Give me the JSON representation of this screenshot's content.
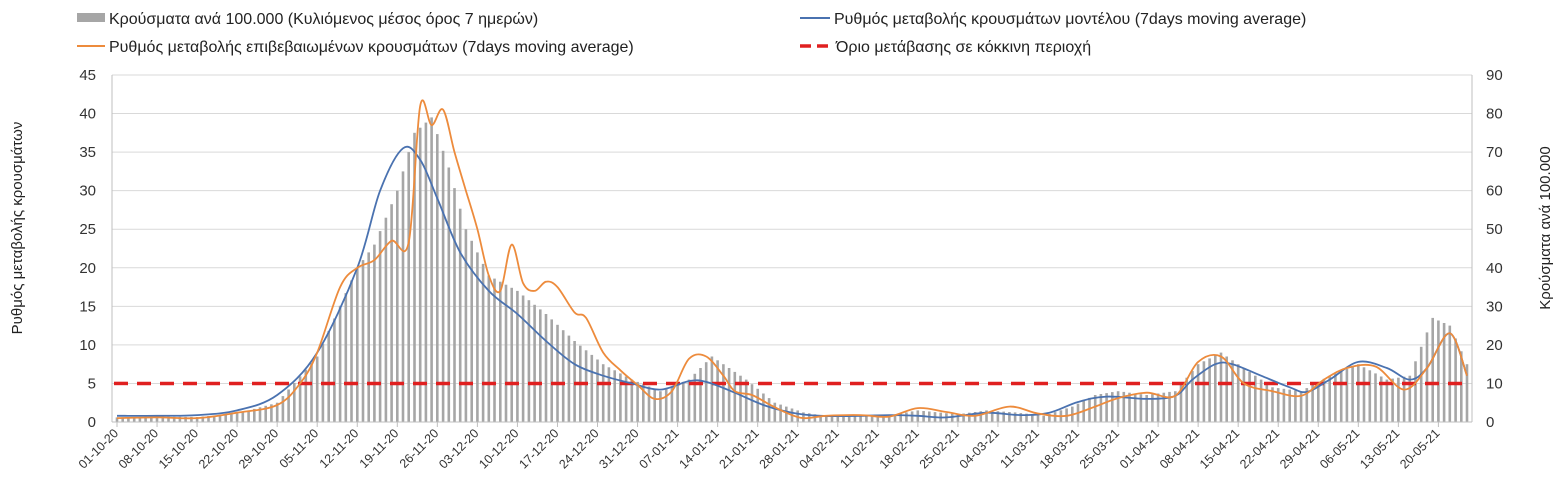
{
  "chart_data": {
    "type": "bar+line",
    "legend": [
      {
        "key": "bars",
        "label": "Κρούσματα ανά 100.000 (Κυλιόμενος μέσος όρος 7 ημερών)",
        "color": "#a6a6a6"
      },
      {
        "key": "model",
        "label": "Ρυθμός μεταβολής κρουσμάτων μοντέλου (7days moving average)",
        "color": "#4a72b0"
      },
      {
        "key": "confirmed",
        "label": "Ρυθμός μεταβολής επιβεβαιωμένων κρουσμάτων (7days moving average)",
        "color": "#ed8b3c"
      },
      {
        "key": "threshold",
        "label": "Όριο μετάβασης σε κόκκινη περιοχή",
        "color": "#e02020"
      }
    ],
    "ylabel_left": "Ρυθμός μεταβολής κρουσμάτων",
    "ylabel_right": "Κρούσματα ανά 100.000",
    "ylim_left": [
      0,
      45
    ],
    "ylim_right": [
      0,
      90
    ],
    "yticks_left": [
      "0",
      "5",
      "10",
      "15",
      "20",
      "25",
      "30",
      "35",
      "40",
      "45"
    ],
    "yticks_right": [
      "0",
      "10",
      "20",
      "30",
      "40",
      "50",
      "60",
      "70",
      "80",
      "90"
    ],
    "x_tick_labels": [
      "01-10-20",
      "08-10-20",
      "15-10-20",
      "22-10-20",
      "29-10-20",
      "05-11-20",
      "12-11-20",
      "19-11-20",
      "26-11-20",
      "03-12-20",
      "10-12-20",
      "17-12-20",
      "24-12-20",
      "31-12-20",
      "07-01-21",
      "14-01-21",
      "21-01-21",
      "28-01-21",
      "04-02-21",
      "11-02-21",
      "18-02-21",
      "25-02-21",
      "04-03-21",
      "11-03-21",
      "18-03-21",
      "25-03-21",
      "01-04-21",
      "08-04-21",
      "15-04-21",
      "22-04-21",
      "29-04-21",
      "06-05-21",
      "13-05-21",
      "20-05-21"
    ],
    "total_days": 236,
    "threshold": 5,
    "series": [
      {
        "key": "bars",
        "name": "Κρούσματα ανά 100.000 (Κυλιόμενος μέσος όρος 7 ημερών)",
        "axis": "right",
        "anchors": [
          [
            0,
            1.2
          ],
          [
            7,
            1.4
          ],
          [
            14,
            1.3
          ],
          [
            21,
            2.2
          ],
          [
            28,
            5
          ],
          [
            35,
            17
          ],
          [
            42,
            40
          ],
          [
            45,
            46
          ],
          [
            49,
            60
          ],
          [
            52,
            75
          ],
          [
            55,
            79
          ],
          [
            58,
            66
          ],
          [
            61,
            50
          ],
          [
            65,
            38
          ],
          [
            70,
            34
          ],
          [
            75,
            28
          ],
          [
            80,
            21
          ],
          [
            85,
            15
          ],
          [
            90,
            11
          ],
          [
            95,
            8
          ],
          [
            100,
            11
          ],
          [
            104,
            17
          ],
          [
            110,
            11
          ],
          [
            115,
            5
          ],
          [
            120,
            2.5
          ],
          [
            124,
            1.5
          ],
          [
            130,
            1.6
          ],
          [
            136,
            2
          ],
          [
            140,
            3
          ],
          [
            147,
            2
          ],
          [
            152,
            3
          ],
          [
            157,
            2.5
          ],
          [
            162,
            1.6
          ],
          [
            167,
            4
          ],
          [
            171,
            7
          ],
          [
            175,
            8
          ],
          [
            180,
            7
          ],
          [
            185,
            8
          ],
          [
            189,
            15
          ],
          [
            193,
            18
          ],
          [
            197,
            14
          ],
          [
            202,
            9
          ],
          [
            207,
            8
          ],
          [
            212,
            12
          ],
          [
            217,
            15
          ],
          [
            222,
            11
          ],
          [
            226,
            12
          ],
          [
            230,
            27
          ],
          [
            233,
            25
          ],
          [
            236,
            15
          ]
        ]
      },
      {
        "key": "model",
        "name": "Ρυθμός μεταβολής κρουσμάτων μοντέλου (7days moving average)",
        "axis": "left",
        "anchors": [
          [
            0,
            0.8
          ],
          [
            7,
            0.8
          ],
          [
            14,
            0.9
          ],
          [
            21,
            1.5
          ],
          [
            28,
            3.5
          ],
          [
            35,
            9
          ],
          [
            42,
            20
          ],
          [
            46,
            30
          ],
          [
            50,
            35.5
          ],
          [
            53,
            34
          ],
          [
            56,
            29
          ],
          [
            60,
            22
          ],
          [
            65,
            17
          ],
          [
            70,
            14
          ],
          [
            75,
            10.5
          ],
          [
            80,
            7.5
          ],
          [
            85,
            6
          ],
          [
            90,
            5
          ],
          [
            95,
            4.2
          ],
          [
            100,
            5.3
          ],
          [
            103,
            5.2
          ],
          [
            108,
            3.8
          ],
          [
            113,
            2.2
          ],
          [
            118,
            1.2
          ],
          [
            123,
            0.8
          ],
          [
            130,
            0.8
          ],
          [
            135,
            0.9
          ],
          [
            140,
            0.8
          ],
          [
            145,
            0.6
          ],
          [
            152,
            1.2
          ],
          [
            158,
            0.9
          ],
          [
            163,
            1.2
          ],
          [
            168,
            2.6
          ],
          [
            173,
            3.3
          ],
          [
            180,
            3
          ],
          [
            185,
            3.4
          ],
          [
            188,
            5.5
          ],
          [
            192,
            7.5
          ],
          [
            195,
            7.5
          ],
          [
            200,
            6
          ],
          [
            205,
            4.5
          ],
          [
            208,
            3.9
          ],
          [
            212,
            5.5
          ],
          [
            217,
            7.8
          ],
          [
            222,
            7
          ],
          [
            226,
            5.5
          ],
          [
            229,
            7
          ],
          [
            233,
            11.5
          ],
          [
            236,
            6
          ]
        ]
      },
      {
        "key": "confirmed",
        "name": "Ρυθμός μεταβολής επιβεβαιωμένων κρουσμάτων (7days moving average)",
        "axis": "left",
        "anchors": [
          [
            0,
            0.5
          ],
          [
            7,
            0.6
          ],
          [
            14,
            0.5
          ],
          [
            21,
            1.2
          ],
          [
            28,
            2.2
          ],
          [
            32,
            5
          ],
          [
            35,
            9
          ],
          [
            39,
            17.5
          ],
          [
            42,
            20
          ],
          [
            45,
            21
          ],
          [
            48,
            23.5
          ],
          [
            51,
            23.3
          ],
          [
            53,
            41
          ],
          [
            55,
            38.5
          ],
          [
            57,
            40.5
          ],
          [
            59,
            35
          ],
          [
            61,
            30
          ],
          [
            63,
            25
          ],
          [
            65,
            19
          ],
          [
            67,
            17
          ],
          [
            69,
            23
          ],
          [
            71,
            18
          ],
          [
            73,
            17
          ],
          [
            75,
            18.2
          ],
          [
            77,
            17.5
          ],
          [
            80,
            14.2
          ],
          [
            82,
            13.5
          ],
          [
            85,
            9
          ],
          [
            88,
            6.7
          ],
          [
            91,
            4.8
          ],
          [
            94,
            3
          ],
          [
            97,
            4
          ],
          [
            100,
            8.2
          ],
          [
            103,
            8.5
          ],
          [
            106,
            6
          ],
          [
            108,
            4
          ],
          [
            111,
            3.5
          ],
          [
            114,
            2.3
          ],
          [
            117,
            1.2
          ],
          [
            120,
            0.5
          ],
          [
            124,
            0.8
          ],
          [
            130,
            0.9
          ],
          [
            135,
            0.7
          ],
          [
            140,
            1.8
          ],
          [
            145,
            1.3
          ],
          [
            150,
            0.8
          ],
          [
            156,
            2
          ],
          [
            161,
            1.1
          ],
          [
            166,
            0.8
          ],
          [
            171,
            2
          ],
          [
            175,
            3.1
          ],
          [
            180,
            3.8
          ],
          [
            185,
            3.4
          ],
          [
            189,
            7.8
          ],
          [
            193,
            8.5
          ],
          [
            197,
            5
          ],
          [
            202,
            4
          ],
          [
            207,
            3.4
          ],
          [
            211,
            5.5
          ],
          [
            215,
            7
          ],
          [
            220,
            7.2
          ],
          [
            225,
            4.2
          ],
          [
            229,
            7
          ],
          [
            233,
            11.5
          ],
          [
            236,
            6
          ]
        ]
      }
    ]
  }
}
